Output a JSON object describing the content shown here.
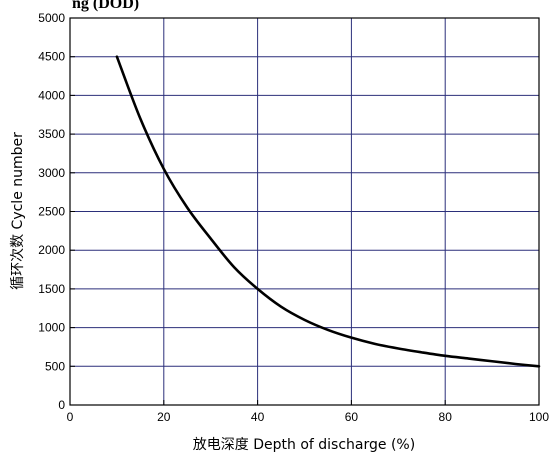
{
  "chart_data": {
    "type": "line",
    "title": "ng (DOD)",
    "xlabel": "放电深度 Depth of discharge (%)",
    "ylabel": "循环次数 Cycle number",
    "xlim": [
      0,
      100
    ],
    "ylim": [
      0,
      5000
    ],
    "x_ticks": [
      "0",
      "20",
      "40",
      "60",
      "80",
      "100"
    ],
    "y_ticks": [
      "0",
      "500",
      "1000",
      "1500",
      "2000",
      "2500",
      "3000",
      "3500",
      "4000",
      "4500",
      "5000"
    ],
    "grid": true,
    "series": [
      {
        "x": [
          10,
          15,
          20,
          25,
          30,
          35,
          40,
          45,
          50,
          55,
          60,
          65,
          70,
          75,
          80,
          85,
          90,
          95,
          100
        ],
        "y": [
          4500,
          3700,
          3050,
          2550,
          2150,
          1780,
          1500,
          1270,
          1100,
          970,
          870,
          790,
          730,
          680,
          635,
          600,
          565,
          530,
          500
        ]
      }
    ],
    "colors": {
      "line": "#000000",
      "grid": "#2b2f7a",
      "frame": "#000000"
    }
  }
}
